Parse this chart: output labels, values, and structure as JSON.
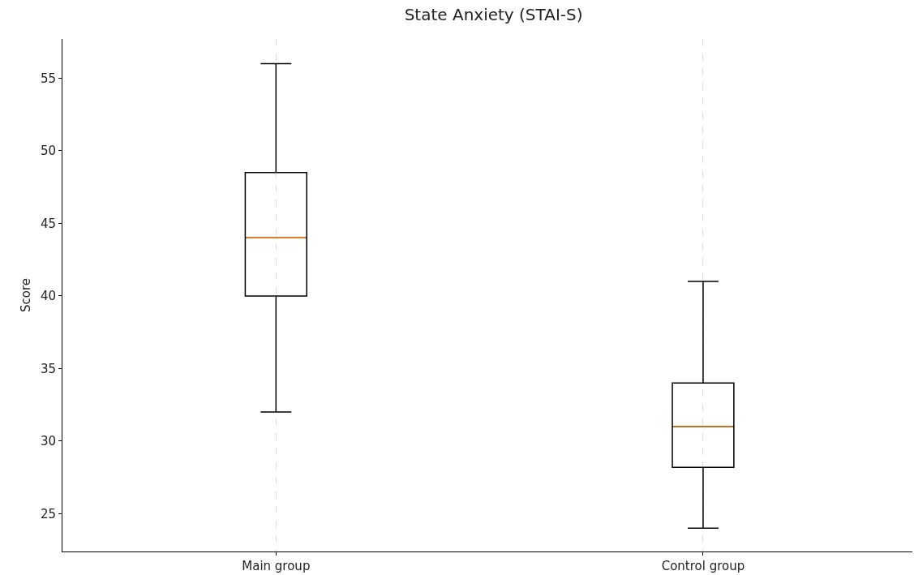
{
  "chart_data": {
    "type": "box",
    "title": "State Anxiety (STAI-S)",
    "ylabel": "Score",
    "categories": [
      "Main group",
      "Control group"
    ],
    "boxes": [
      {
        "low": 32,
        "q1": 40,
        "median": 44,
        "q3": 48.5,
        "high": 56
      },
      {
        "low": 24,
        "q1": 28.2,
        "median": 31,
        "q3": 34,
        "high": 41
      }
    ],
    "color": "#000000",
    "ylim": [
      22.4,
      57.7
    ],
    "yticks": [
      25,
      30,
      35,
      40,
      45,
      50,
      55
    ],
    "grid": "x"
  }
}
